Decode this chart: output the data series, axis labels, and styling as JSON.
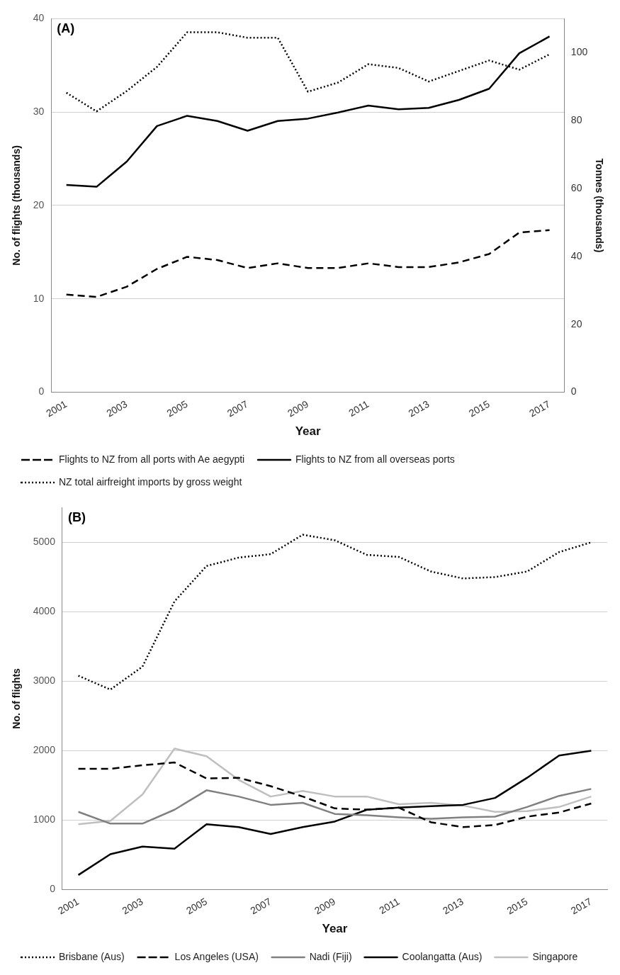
{
  "chart_data": [
    {
      "type": "line",
      "title": "(A)",
      "xlabel": "Year",
      "ylabel": "No. of flights (thousands)",
      "y2label": "Tonnes (thousands)",
      "categories": [
        "2001",
        null,
        "2003",
        null,
        "2005",
        null,
        "2007",
        null,
        "2009",
        null,
        "2011",
        null,
        "2013",
        null,
        "2015",
        null,
        "2017"
      ],
      "series": [
        {
          "name": "Flights to NZ from all ports with Ae aegypti",
          "color": "#000000",
          "line_style": "dashed",
          "values": [
            10.45,
            10.2,
            11.3,
            13.2,
            14.5,
            14.15,
            13.3,
            13.8,
            13.3,
            13.3,
            13.8,
            13.4,
            13.4,
            13.9,
            14.8,
            17.1,
            17.35
          ]
        },
        {
          "name": "Flights to NZ from all overseas ports",
          "color": "#000000",
          "line_style": "solid",
          "values": [
            22.2,
            22.0,
            24.7,
            28.5,
            29.6,
            29.05,
            28.0,
            29.05,
            29.3,
            29.95,
            30.7,
            30.3,
            30.45,
            31.3,
            32.5,
            36.3,
            38.1
          ]
        },
        {
          "name": "NZ total airfreight imports by gross weight",
          "color": "#000000",
          "line_style": "dotted",
          "axis": "y2",
          "values": [
            88.2,
            82.7,
            88.7,
            95.8,
            106,
            106,
            104.4,
            104.4,
            88.5,
            91.2,
            96.6,
            95.5,
            91.5,
            94.6,
            97.7,
            95,
            99.5
          ]
        }
      ],
      "ylim": [
        0,
        40
      ],
      "yticks": [
        0,
        10,
        20,
        30,
        40
      ],
      "y2lim": [
        0,
        110
      ],
      "y2ticks": [
        0,
        20,
        40,
        60,
        80,
        100
      ],
      "grid": "y",
      "legend": "bottom",
      "marker": "none"
    },
    {
      "type": "line",
      "title": "(B)",
      "xlabel": "Year",
      "ylabel": "No. of flights",
      "categories": [
        "2001",
        null,
        "2003",
        null,
        "2005",
        null,
        "2007",
        null,
        "2009",
        null,
        "2011",
        null,
        "2013",
        null,
        "2015",
        null,
        "2017"
      ],
      "series": [
        {
          "name": "Brisbane (Aus)",
          "color": "#000000",
          "line_style": "dotted",
          "values": [
            3080,
            2880,
            3210,
            4150,
            4660,
            4780,
            4830,
            5110,
            5030,
            4820,
            4790,
            4580,
            4480,
            4500,
            4580,
            4860,
            5000
          ]
        },
        {
          "name": "Los Angeles (USA)",
          "color": "#000000",
          "line_style": "dashed",
          "values": [
            1740,
            1740,
            1790,
            1830,
            1600,
            1610,
            1490,
            1340,
            1170,
            1150,
            1180,
            970,
            900,
            930,
            1050,
            1110,
            1240
          ]
        },
        {
          "name": "Nadi (Fiji)",
          "color": "#808080",
          "line_style": "solid",
          "values": [
            1120,
            950,
            950,
            1150,
            1430,
            1340,
            1220,
            1250,
            1090,
            1070,
            1040,
            1020,
            1040,
            1050,
            1190,
            1350,
            1450
          ]
        },
        {
          "name": "Coolangatta (Aus)",
          "color": "#000000",
          "line_style": "solid",
          "values": [
            210,
            510,
            620,
            590,
            940,
            900,
            800,
            900,
            980,
            1150,
            1180,
            1200,
            1220,
            1320,
            1610,
            1930,
            2000
          ]
        },
        {
          "name": "Singapore",
          "color": "#bfbfbf",
          "line_style": "solid",
          "values": [
            940,
            990,
            1370,
            2030,
            1920,
            1580,
            1340,
            1420,
            1340,
            1340,
            1230,
            1250,
            1210,
            1120,
            1130,
            1190,
            1340
          ]
        }
      ],
      "ylim": [
        0,
        5500
      ],
      "yticks": [
        0,
        1000,
        2000,
        3000,
        4000,
        5000
      ],
      "grid": "y",
      "legend": "bottom",
      "marker": "none"
    }
  ]
}
